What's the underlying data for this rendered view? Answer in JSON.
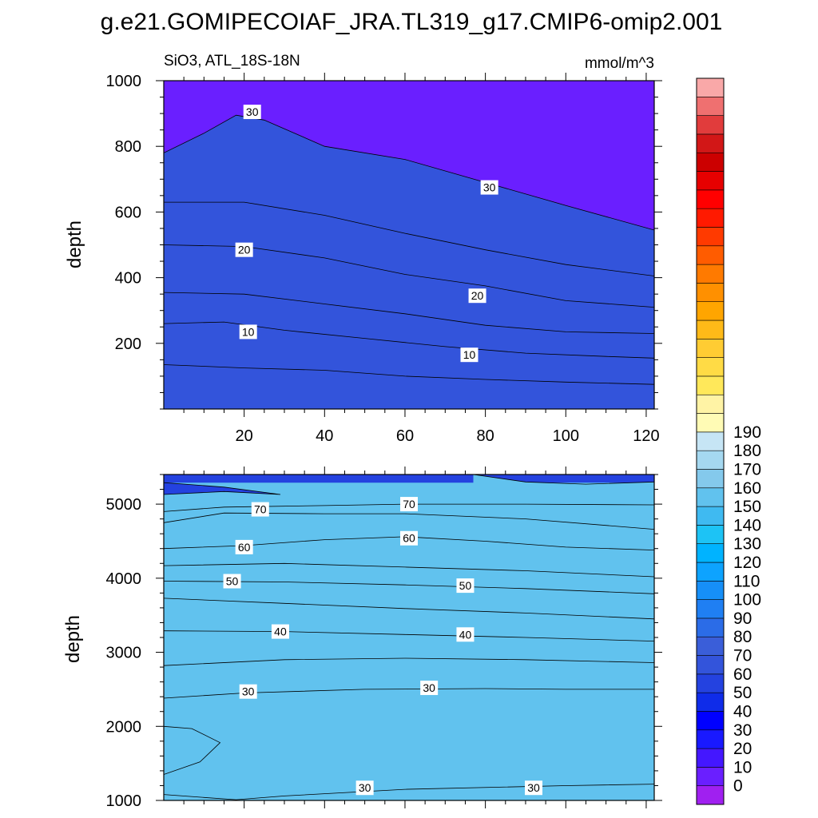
{
  "title": "g.e21.GOMIPECOIAF_JRA.TL319_g17.CMIP6-omip2.001",
  "panel_top": {
    "left_label": "SiO3, ATL_18S-18N",
    "right_label": "mmol/m^3",
    "ylabel": "depth"
  },
  "panel_bottom": {
    "ylabel": "depth"
  },
  "chart_data": [
    {
      "type": "contour",
      "panel": "upper",
      "variable": "SiO3",
      "region": "ATL_18S-18N",
      "units": "mmol/m^3",
      "ylabel": "depth",
      "xlim": [
        0,
        122
      ],
      "ylim": [
        1000,
        0
      ],
      "x_ticks": [
        20,
        40,
        60,
        80,
        100,
        120
      ],
      "y_ticks": [
        200,
        400,
        600,
        800,
        1000
      ],
      "x_tick_labels": [
        "20",
        "40",
        "60",
        "80",
        "100",
        "120"
      ],
      "y_tick_labels": [
        "200",
        "400",
        "600",
        "800",
        "1000"
      ],
      "contour_labels": [
        {
          "text": "10",
          "x": 21,
          "y": 235
        },
        {
          "text": "10",
          "x": 76,
          "y": 165
        },
        {
          "text": "20",
          "x": 20,
          "y": 485
        },
        {
          "text": "20",
          "x": 78,
          "y": 345
        },
        {
          "text": "30",
          "x": 22,
          "y": 905
        },
        {
          "text": "30",
          "x": 81,
          "y": 675
        }
      ],
      "contours": [
        {
          "level": 5,
          "depth_at_x": [
            [
              0,
              135
            ],
            [
              20,
              125
            ],
            [
              40,
              118
            ],
            [
              60,
              100
            ],
            [
              80,
              90
            ],
            [
              100,
              82
            ],
            [
              122,
              75
            ]
          ]
        },
        {
          "level": 10,
          "depth_at_x": [
            [
              0,
              260
            ],
            [
              15,
              265
            ],
            [
              30,
              240
            ],
            [
              50,
              215
            ],
            [
              70,
              190
            ],
            [
              90,
              170
            ],
            [
              110,
              160
            ],
            [
              122,
              155
            ]
          ]
        },
        {
          "level": 15,
          "depth_at_x": [
            [
              0,
              355
            ],
            [
              20,
              350
            ],
            [
              40,
              320
            ],
            [
              60,
              290
            ],
            [
              80,
              255
            ],
            [
              100,
              235
            ],
            [
              122,
              230
            ]
          ]
        },
        {
          "level": 20,
          "depth_at_x": [
            [
              0,
              500
            ],
            [
              20,
              495
            ],
            [
              40,
              460
            ],
            [
              60,
              410
            ],
            [
              80,
              375
            ],
            [
              100,
              330
            ],
            [
              122,
              310
            ]
          ]
        },
        {
          "level": 25,
          "depth_at_x": [
            [
              0,
              630
            ],
            [
              20,
              630
            ],
            [
              40,
              590
            ],
            [
              60,
              535
            ],
            [
              80,
              485
            ],
            [
              100,
              440
            ],
            [
              122,
              405
            ]
          ]
        },
        {
          "level": 30,
          "depth_at_x": [
            [
              0,
              780
            ],
            [
              10,
              840
            ],
            [
              18,
              895
            ],
            [
              25,
              880
            ],
            [
              40,
              800
            ],
            [
              60,
              760
            ],
            [
              80,
              690
            ],
            [
              100,
              620
            ],
            [
              122,
              545
            ]
          ]
        }
      ]
    },
    {
      "type": "contour",
      "panel": "lower",
      "variable": "SiO3",
      "units": "mmol/m^3",
      "ylabel": "depth",
      "xlim": [
        0,
        122
      ],
      "ylim": [
        5400,
        1000
      ],
      "y_ticks": [
        1000,
        2000,
        3000,
        4000,
        5000
      ],
      "y_tick_labels": [
        "1000",
        "2000",
        "3000",
        "4000",
        "5000"
      ],
      "contour_labels": [
        {
          "text": "30",
          "x": 50,
          "y": 1170
        },
        {
          "text": "30",
          "x": 92,
          "y": 1170
        },
        {
          "text": "30",
          "x": 21,
          "y": 2470
        },
        {
          "text": "30",
          "x": 66,
          "y": 2520
        },
        {
          "text": "40",
          "x": 29,
          "y": 3280
        },
        {
          "text": "40",
          "x": 75,
          "y": 3240
        },
        {
          "text": "50",
          "x": 17,
          "y": 3960
        },
        {
          "text": "50",
          "x": 75,
          "y": 3900
        },
        {
          "text": "60",
          "x": 20,
          "y": 4420
        },
        {
          "text": "60",
          "x": 61,
          "y": 4540
        },
        {
          "text": "70",
          "x": 24,
          "y": 4930
        },
        {
          "text": "70",
          "x": 61,
          "y": 5000
        }
      ],
      "contours": [
        {
          "level": 30,
          "depth_at_x": [
            [
              0,
              1080
            ],
            [
              10,
              1040
            ],
            [
              18,
              1010
            ],
            [
              30,
              1060
            ],
            [
              60,
              1150
            ],
            [
              100,
              1200
            ],
            [
              122,
              1220
            ]
          ]
        },
        {
          "level": 25,
          "depth_at_x": [
            [
              0,
              1350
            ],
            [
              9,
              1520
            ],
            [
              14,
              1780
            ],
            [
              7,
              1970
            ],
            [
              0,
              2000
            ]
          ]
        },
        {
          "level": 35,
          "depth_at_x": [
            [
              0,
              2380
            ],
            [
              20,
              2450
            ],
            [
              50,
              2500
            ],
            [
              80,
              2510
            ],
            [
              100,
              2500
            ],
            [
              122,
              2500
            ]
          ]
        },
        {
          "level": 35,
          "depth_at_x": [
            [
              0,
              2820
            ],
            [
              30,
              2900
            ],
            [
              60,
              2920
            ],
            [
              90,
              2900
            ],
            [
              122,
              2860
            ]
          ]
        },
        {
          "level": 40,
          "depth_at_x": [
            [
              0,
              3290
            ],
            [
              30,
              3280
            ],
            [
              60,
              3240
            ],
            [
              90,
              3200
            ],
            [
              122,
              3150
            ]
          ]
        },
        {
          "level": 45,
          "depth_at_x": [
            [
              0,
              3730
            ],
            [
              30,
              3660
            ],
            [
              60,
              3590
            ],
            [
              90,
              3530
            ],
            [
              122,
              3450
            ]
          ]
        },
        {
          "level": 50,
          "depth_at_x": [
            [
              0,
              3960
            ],
            [
              30,
              3950
            ],
            [
              60,
              3910
            ],
            [
              90,
              3860
            ],
            [
              122,
              3790
            ]
          ]
        },
        {
          "level": 55,
          "depth_at_x": [
            [
              0,
              4170
            ],
            [
              30,
              4200
            ],
            [
              60,
              4150
            ],
            [
              90,
              4100
            ],
            [
              122,
              4020
            ]
          ]
        },
        {
          "level": 60,
          "depth_at_x": [
            [
              0,
              4400
            ],
            [
              20,
              4440
            ],
            [
              40,
              4520
            ],
            [
              60,
              4560
            ],
            [
              80,
              4500
            ],
            [
              100,
              4420
            ],
            [
              122,
              4380
            ]
          ]
        },
        {
          "level": 65,
          "depth_at_x": [
            [
              0,
              4750
            ],
            [
              15,
              4880
            ],
            [
              40,
              4870
            ],
            [
              60,
              4870
            ],
            [
              90,
              4800
            ],
            [
              122,
              4660
            ]
          ]
        },
        {
          "level": 70,
          "depth_at_x": [
            [
              0,
              4900
            ],
            [
              15,
              4960
            ],
            [
              40,
              4980
            ],
            [
              60,
              5000
            ],
            [
              90,
              5000
            ],
            [
              122,
              4990
            ]
          ]
        },
        {
          "level": 75,
          "depth_at_x": [
            [
              0,
              5130
            ],
            [
              15,
              5170
            ],
            [
              29,
              5130
            ],
            [
              15,
              5230
            ],
            [
              0,
              5290
            ]
          ]
        },
        {
          "level": 75,
          "depth_at_x": [
            [
              77,
              5400
            ],
            [
              90,
              5300
            ],
            [
              105,
              5270
            ],
            [
              122,
              5300
            ]
          ]
        }
      ]
    }
  ],
  "colorbar": {
    "colors": [
      "#a020f0",
      "#6a1fff",
      "#4417ff",
      "#1919ff",
      "#0000ff",
      "#0f2ce9",
      "#2442e0",
      "#3354db",
      "#3a5ed9",
      "#2b6ce7",
      "#1f7ff3",
      "#168ff8",
      "#0da3ff",
      "#00b3ff",
      "#1dc3f5",
      "#3fbaf1",
      "#61c2ee",
      "#84c9ec",
      "#a5d8f0",
      "#c6e5f5",
      "#fffbb5",
      "#fff3a5",
      "#ffe85a",
      "#ffdb45",
      "#ffcc33",
      "#ffba18",
      "#ffa500",
      "#ff9000",
      "#ff7a00",
      "#ff5c00",
      "#ff3a00",
      "#ff1a00",
      "#ff0000",
      "#e60000",
      "#cc0000",
      "#d21717",
      "#e13c3c",
      "#ef7070",
      "#f9a8a8"
    ],
    "labels": [
      "0",
      "10",
      "20",
      "30",
      "40",
      "50",
      "60",
      "70",
      "80",
      "90",
      "100",
      "110",
      "120",
      "130",
      "140",
      "150",
      "160",
      "170",
      "180",
      "190"
    ]
  }
}
